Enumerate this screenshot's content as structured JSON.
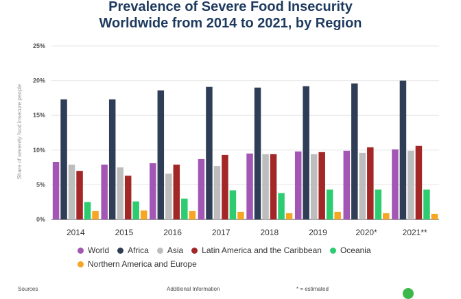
{
  "header": {
    "title_line_1": "Prevalence of Severe Food Insecurity",
    "title_line_2": "Worldwide from 2014 to 2021, by Region"
  },
  "footer": {
    "sources": "Sources",
    "additional_info": "Additional Information",
    "estimated_note": "* = estimated"
  },
  "chart_data": {
    "type": "bar",
    "title": "Prevalence of Severe Food Insecurity Worldwide from 2014 to 2021, by Region",
    "ylabel": "Share of severely food insecure people",
    "xlabel": "",
    "ylim": [
      0,
      25
    ],
    "yticks": [
      0,
      5,
      10,
      15,
      20,
      25
    ],
    "ytick_labels": [
      "0%",
      "5%",
      "10%",
      "15%",
      "20%",
      "25%"
    ],
    "grid": true,
    "legend_position": "bottom",
    "categories": [
      "2014",
      "2015",
      "2016",
      "2017",
      "2018",
      "2019",
      "2020*",
      "2021**"
    ],
    "series": [
      {
        "name": "World",
        "color": "#a357b5",
        "values": [
          8.3,
          7.9,
          8.1,
          8.7,
          9.5,
          9.8,
          9.9,
          10.1
        ]
      },
      {
        "name": "Africa",
        "color": "#2f3e56",
        "values": [
          17.3,
          17.3,
          18.6,
          19.1,
          19.0,
          19.2,
          19.6,
          20.0
        ]
      },
      {
        "name": "Asia",
        "color": "#bdbdbd",
        "values": [
          7.9,
          7.5,
          6.6,
          7.7,
          9.4,
          9.4,
          9.6,
          9.9
        ]
      },
      {
        "name": "Latin America and the Caribbean",
        "color": "#a32727",
        "values": [
          7.0,
          6.3,
          7.9,
          9.3,
          9.4,
          9.7,
          10.4,
          10.6
        ]
      },
      {
        "name": "Oceania",
        "color": "#2ecc71",
        "values": [
          2.5,
          2.6,
          3.0,
          4.2,
          3.8,
          4.3,
          4.3,
          4.3
        ]
      },
      {
        "name": "Northern America and Europe",
        "color": "#f5a623",
        "values": [
          1.2,
          1.3,
          1.2,
          1.1,
          0.9,
          1.1,
          0.9,
          0.8
        ]
      }
    ]
  }
}
